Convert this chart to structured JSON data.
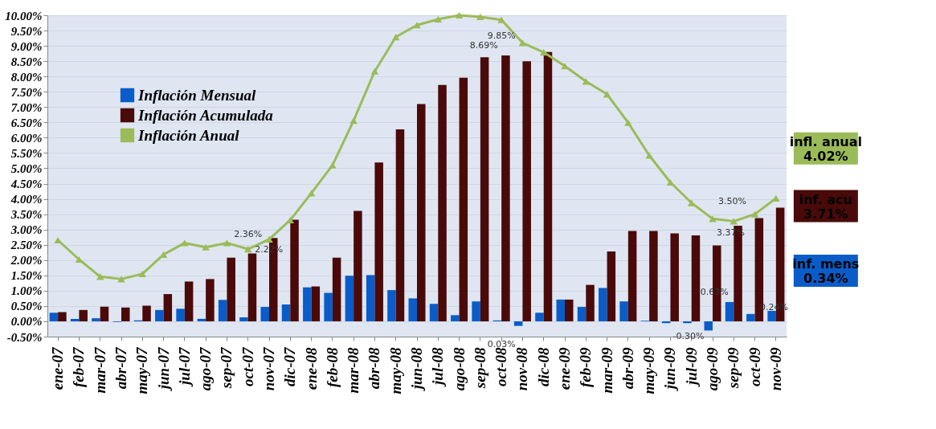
{
  "chart_data": {
    "type": "bar",
    "categories": [
      "ene-07",
      "feb-07",
      "mar-07",
      "abr-07",
      "may-07",
      "jun-07",
      "jul-07",
      "ago-07",
      "sep-07",
      "oct-07",
      "nov-07",
      "dic-07",
      "ene-08",
      "feb-08",
      "mar-08",
      "abr-08",
      "may-08",
      "jun-08",
      "jul-08",
      "ago-08",
      "sep-08",
      "oct-08",
      "nov-08",
      "dic-08",
      "ene-09",
      "feb-09",
      "mar-09",
      "abr-09",
      "may-09",
      "jun-09",
      "jul-09",
      "ago-09",
      "sep-09",
      "oct-09",
      "nov-09"
    ],
    "series": [
      {
        "name": "Inflación Mensual",
        "type": "bar",
        "color": "#0a5cc8",
        "values": [
          0.28,
          0.08,
          0.1,
          -0.02,
          0.03,
          0.37,
          0.41,
          0.08,
          0.7,
          0.13,
          0.47,
          0.55,
          1.11,
          0.93,
          1.49,
          1.51,
          1.02,
          0.75,
          0.57,
          0.2,
          0.65,
          0.03,
          -0.15,
          0.28,
          0.71,
          0.47,
          1.09,
          0.65,
          0.02,
          -0.06,
          -0.06,
          -0.3,
          0.63,
          0.24,
          0.34
        ]
      },
      {
        "name": "Inflación Acumulada",
        "type": "bar",
        "color": "#4a0a0a",
        "values": [
          0.3,
          0.37,
          0.48,
          0.45,
          0.51,
          0.89,
          1.3,
          1.38,
          2.08,
          2.22,
          2.72,
          3.32,
          1.14,
          2.08,
          3.61,
          5.19,
          6.27,
          7.1,
          7.72,
          7.96,
          8.63,
          8.69,
          8.5,
          8.8,
          0.71,
          1.19,
          2.28,
          2.95,
          2.95,
          2.87,
          2.81,
          2.48,
          3.12,
          3.37,
          3.71
        ]
      },
      {
        "name": "Inflación Anual",
        "type": "line",
        "color": "#9bbb59",
        "values": [
          2.65,
          2.02,
          1.46,
          1.38,
          1.55,
          2.18,
          2.56,
          2.42,
          2.56,
          2.36,
          2.68,
          3.31,
          4.19,
          5.1,
          6.56,
          8.17,
          9.29,
          9.68,
          9.87,
          10.0,
          9.95,
          9.85,
          9.1,
          8.79,
          8.34,
          7.84,
          7.42,
          6.49,
          5.42,
          4.54,
          3.87,
          3.35,
          3.27,
          3.5,
          4.02
        ]
      }
    ],
    "annotations": [
      {
        "text": "infl. anual\n4.02%",
        "x": "nov-09",
        "y": 4.02
      },
      {
        "text": "inf. acu\n3.71%",
        "x": "nov-09",
        "y": 3.71
      },
      {
        "text": "inf. mens\n0.34%",
        "x": "nov-09",
        "y": 0.34
      },
      {
        "text": "2.36%",
        "x": "oct-07",
        "y": 2.36
      },
      {
        "text": "2.22%",
        "x": "oct-07",
        "y": 2.22
      },
      {
        "text": "9.85%",
        "x": "oct-08",
        "y": 9.85
      },
      {
        "text": "8.69%",
        "x": "oct-08",
        "y": 8.69
      },
      {
        "text": "0.03%",
        "x": "oct-08",
        "y": 0.03
      },
      {
        "text": "3.50%",
        "x": "oct-09",
        "y": 3.5
      },
      {
        "text": "3.37%",
        "x": "oct-09",
        "y": 3.37
      },
      {
        "text": "0.63%",
        "x": "sep-09",
        "y": 0.63
      },
      {
        "text": "0.24%",
        "x": "oct-09",
        "y": 0.24
      },
      {
        "text": "-0.30%",
        "x": "ago-09",
        "y": -0.3
      }
    ],
    "ylim": [
      -0.5,
      10
    ],
    "yticks": [
      {
        "value": -0.5,
        "label": "-0.50%"
      },
      {
        "value": 0,
        "label": "0.00%"
      },
      {
        "value": 0.5,
        "label": "0.50%"
      },
      {
        "value": 1,
        "label": "1.00%"
      },
      {
        "value": 1.5,
        "label": "1.50%"
      },
      {
        "value": 2,
        "label": "2.00%"
      },
      {
        "value": 2.5,
        "label": "2.50%"
      },
      {
        "value": 3,
        "label": "3.00%"
      },
      {
        "value": 3.5,
        "label": "3.50%"
      },
      {
        "value": 4,
        "label": "4.00%"
      },
      {
        "value": 4.5,
        "label": "4.50%"
      },
      {
        "value": 5,
        "label": "5.00%"
      },
      {
        "value": 5.5,
        "label": "5.50%"
      },
      {
        "value": 6,
        "label": "6.00%"
      },
      {
        "value": 6.5,
        "label": "6.50%"
      },
      {
        "value": 7,
        "label": "7.00%"
      },
      {
        "value": 7.5,
        "label": "7.50%"
      },
      {
        "value": 8,
        "label": "8.00%"
      },
      {
        "value": 8.5,
        "label": "8.50%"
      },
      {
        "value": 9,
        "label": "9.00%"
      },
      {
        "value": 9.5,
        "label": "9.50%"
      },
      {
        "value": 10,
        "label": "10.00%"
      }
    ],
    "grid": "y",
    "legend": "top left",
    "marker": "triangle"
  }
}
